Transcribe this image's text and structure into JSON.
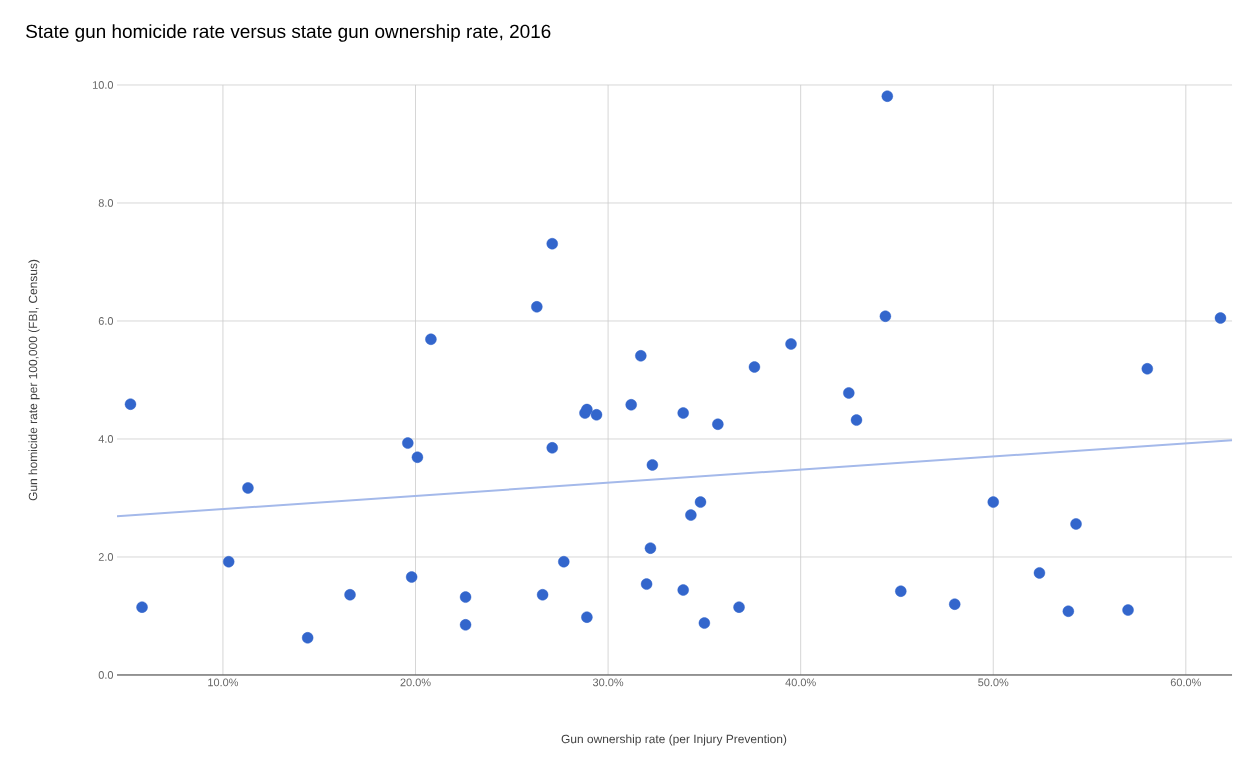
{
  "chart_data": {
    "type": "scatter",
    "title": "State gun homicide rate versus state gun ownership rate, 2016",
    "xlabel": "Gun ownership rate (per Injury Prevention)",
    "ylabel": "Gun homicide rate per 100,000 (FBI, Census)",
    "xlim": [
      4.5,
      62.4
    ],
    "ylim": [
      0,
      10
    ],
    "xticks": [
      {
        "value": 10,
        "label": "10.0%"
      },
      {
        "value": 20,
        "label": "20.0%"
      },
      {
        "value": 30,
        "label": "30.0%"
      },
      {
        "value": 40,
        "label": "40.0%"
      },
      {
        "value": 50,
        "label": "50.0%"
      },
      {
        "value": 60,
        "label": "60.0%"
      }
    ],
    "yticks": [
      {
        "value": 0,
        "label": "0.0"
      },
      {
        "value": 2,
        "label": "2.0"
      },
      {
        "value": 4,
        "label": "4.0"
      },
      {
        "value": 6,
        "label": "6.0"
      },
      {
        "value": 8,
        "label": "8.0"
      },
      {
        "value": 10,
        "label": "10.0"
      }
    ],
    "grid": true,
    "series": [
      {
        "type": "scatter",
        "marker": "circle",
        "color": "#3366cc",
        "x": [
          5.2,
          5.8,
          10.3,
          11.3,
          14.4,
          16.6,
          19.6,
          19.8,
          20.1,
          20.8,
          22.6,
          22.6,
          26.3,
          26.6,
          27.1,
          27.1,
          27.7,
          28.8,
          28.9,
          28.9,
          29.4,
          31.2,
          31.7,
          32.0,
          32.2,
          32.3,
          33.9,
          33.9,
          34.3,
          34.8,
          35.0,
          35.7,
          36.8,
          37.6,
          39.5,
          42.5,
          42.9,
          44.4,
          44.5,
          45.2,
          48.0,
          50.0,
          52.4,
          53.9,
          54.3,
          57.0,
          58.0,
          61.8
        ],
        "values": [
          4.59,
          1.15,
          1.92,
          3.17,
          0.63,
          1.36,
          3.93,
          1.66,
          3.69,
          5.69,
          1.32,
          0.85,
          6.24,
          1.36,
          7.31,
          3.85,
          1.92,
          4.44,
          4.5,
          0.98,
          4.41,
          4.58,
          5.41,
          1.54,
          2.15,
          3.56,
          4.44,
          1.44,
          2.71,
          2.93,
          0.88,
          4.25,
          1.15,
          5.22,
          5.61,
          4.78,
          4.32,
          6.08,
          9.81,
          1.42,
          1.2,
          2.93,
          1.73,
          1.08,
          2.56,
          1.1,
          5.19,
          6.05
        ]
      },
      {
        "type": "line",
        "color": "#a4b9ea",
        "marker": "none",
        "x": [
          4.5,
          62.4
        ],
        "values": [
          2.69,
          3.98
        ]
      }
    ]
  }
}
